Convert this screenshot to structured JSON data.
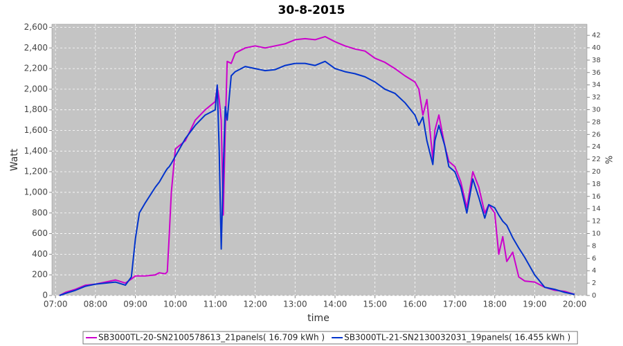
{
  "chart_data": {
    "type": "line",
    "title": "30-8-2015",
    "x_label": "time",
    "y_label": "Watt",
    "y2_label": "%",
    "x": [
      7.1,
      7.25,
      7.5,
      7.75,
      8,
      8.25,
      8.5,
      8.75,
      8.9,
      9,
      9.1,
      9.25,
      9.5,
      9.6,
      9.75,
      9.8,
      9.85,
      9.9,
      10,
      10.25,
      10.5,
      10.75,
      11,
      11.05,
      11.1,
      11.15,
      11.2,
      11.25,
      11.3,
      11.4,
      11.5,
      11.75,
      12,
      12.25,
      12.5,
      12.75,
      13,
      13.25,
      13.5,
      13.75,
      14,
      14.25,
      14.5,
      14.75,
      15,
      15.25,
      15.5,
      15.75,
      16,
      16.1,
      16.2,
      16.3,
      16.45,
      16.5,
      16.6,
      16.75,
      16.85,
      17,
      17.15,
      17.3,
      17.45,
      17.6,
      17.75,
      17.85,
      18,
      18.1,
      18.2,
      18.3,
      18.45,
      18.6,
      18.75,
      19,
      19.25,
      19.5,
      19.75,
      20
    ],
    "series": [
      {
        "name": "SB3000TL-20-SN2100578613_21panels( 16.709 kWh )",
        "color": "#cc00cc",
        "values": [
          0,
          30,
          60,
          100,
          110,
          130,
          150,
          120,
          160,
          190,
          190,
          190,
          200,
          220,
          210,
          230,
          600,
          1000,
          1420,
          1500,
          1700,
          1800,
          1880,
          2030,
          1900,
          1700,
          780,
          1600,
          2270,
          2250,
          2350,
          2400,
          2420,
          2400,
          2420,
          2440,
          2480,
          2490,
          2480,
          2510,
          2460,
          2420,
          2390,
          2370,
          2300,
          2260,
          2200,
          2130,
          2070,
          2000,
          1750,
          1900,
          1320,
          1600,
          1750,
          1450,
          1300,
          1250,
          1100,
          850,
          1200,
          1050,
          800,
          880,
          800,
          400,
          570,
          330,
          420,
          180,
          140,
          130,
          80,
          50,
          40,
          10
        ]
      },
      {
        "name": "SB3000TL-21-SN2130032031_19panels( 16.455 kWh )",
        "color": "#0033cc",
        "values": [
          0,
          20,
          50,
          90,
          110,
          120,
          130,
          100,
          180,
          550,
          800,
          900,
          1050,
          1100,
          1200,
          1230,
          1250,
          1280,
          1350,
          1520,
          1650,
          1750,
          1800,
          2040,
          1400,
          450,
          1200,
          1830,
          1700,
          2130,
          2170,
          2220,
          2200,
          2180,
          2190,
          2230,
          2250,
          2250,
          2230,
          2270,
          2200,
          2170,
          2150,
          2120,
          2070,
          2000,
          1960,
          1870,
          1750,
          1650,
          1730,
          1500,
          1270,
          1500,
          1650,
          1450,
          1250,
          1200,
          1050,
          800,
          1130,
          950,
          750,
          880,
          850,
          780,
          720,
          680,
          560,
          460,
          370,
          200,
          80,
          60,
          30,
          10
        ]
      }
    ],
    "xlim": [
      6.91,
      20.31
    ],
    "xticks": [
      {
        "value": 7,
        "label": "07:00"
      },
      {
        "value": 8,
        "label": "08:00"
      },
      {
        "value": 9,
        "label": "09:00"
      },
      {
        "value": 10,
        "label": "10:00"
      },
      {
        "value": 11,
        "label": "11:00"
      },
      {
        "value": 12,
        "label": "12:00"
      },
      {
        "value": 13,
        "label": "13:00"
      },
      {
        "value": 14,
        "label": "14:00"
      },
      {
        "value": 15,
        "label": "15:00"
      },
      {
        "value": 16,
        "label": "16:00"
      },
      {
        "value": 17,
        "label": "17:00"
      },
      {
        "value": 18,
        "label": "18:00"
      },
      {
        "value": 19,
        "label": "19:00"
      },
      {
        "value": 20,
        "label": "20:00"
      }
    ],
    "ylim": [
      0,
      2630
    ],
    "yticks": [
      0,
      200,
      400,
      600,
      800,
      {
        "value": 1000,
        "label": "1,000"
      },
      {
        "value": 1200,
        "label": "1,200"
      },
      {
        "value": 1400,
        "label": "1,400"
      },
      {
        "value": 1600,
        "label": "1,600"
      },
      {
        "value": 1800,
        "label": "1,800"
      },
      {
        "value": 2000,
        "label": "2,000"
      },
      {
        "value": 2200,
        "label": "2,200"
      },
      {
        "value": 2400,
        "label": "2,400"
      },
      {
        "value": 2600,
        "label": "2,600"
      }
    ],
    "y2lim": [
      0,
      43.8
    ],
    "y2ticks": [
      0,
      2,
      4,
      6,
      8,
      10,
      12,
      14,
      16,
      18,
      20,
      22,
      24,
      26,
      28,
      30,
      32,
      34,
      36,
      38,
      40,
      42
    ],
    "grid": true,
    "legend": "bottom"
  }
}
